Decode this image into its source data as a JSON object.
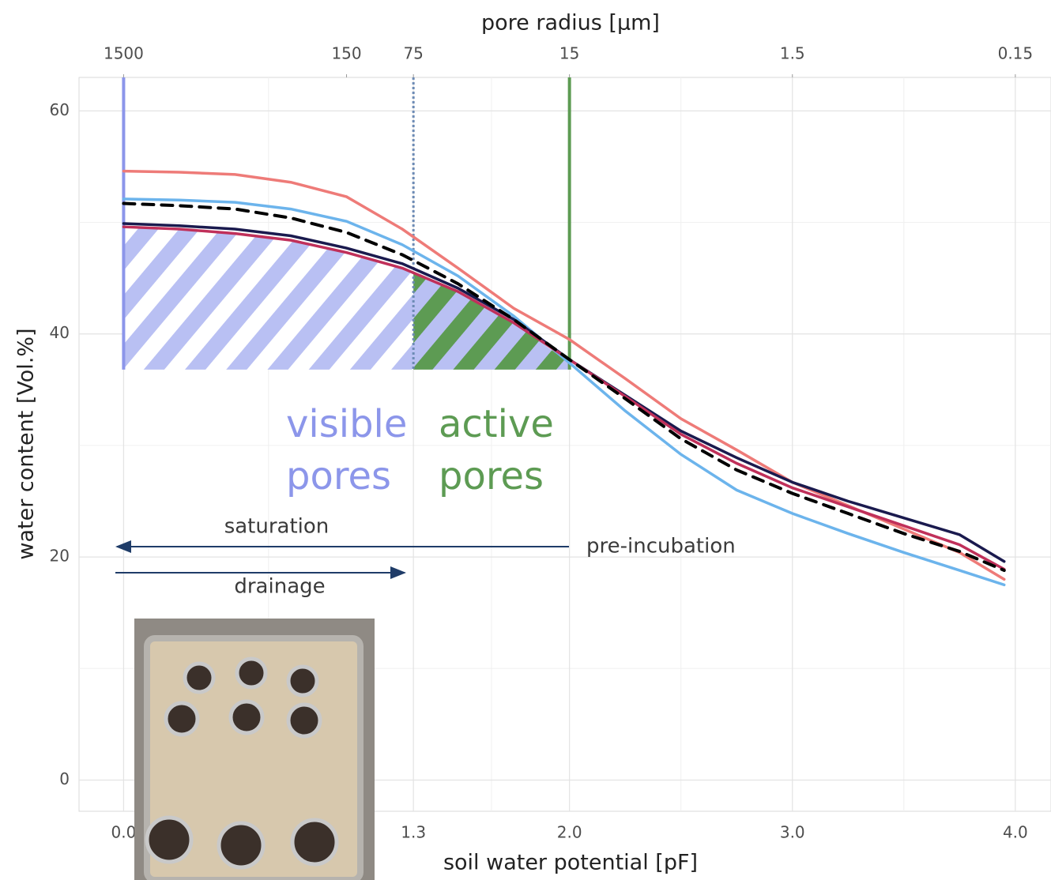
{
  "chart_data": {
    "type": "line",
    "xlabel": "soil water potential [pF]",
    "x2label": "pore radius [μm]",
    "ylabel": "water content [Vol.%]",
    "xlim": [
      -0.2,
      4.16
    ],
    "ylim": [
      -2.8,
      63
    ],
    "xticks": [
      {
        "value": 0,
        "label": "0.0"
      },
      {
        "value": 1.3,
        "label": "1.3"
      },
      {
        "value": 2,
        "label": "2.0"
      },
      {
        "value": 3,
        "label": "3.0"
      },
      {
        "value": 4,
        "label": "4.0"
      }
    ],
    "x2ticks": [
      {
        "value": 0,
        "label": "1500"
      },
      {
        "value": 1,
        "label": "150"
      },
      {
        "value": 1.3,
        "label": "75"
      },
      {
        "value": 2,
        "label": "15"
      },
      {
        "value": 3,
        "label": "1.5"
      },
      {
        "value": 4,
        "label": "0.15"
      }
    ],
    "yticks": [
      0,
      20,
      40,
      60
    ],
    "grid": true,
    "minor_grid": true,
    "x": [
      0,
      0.25,
      0.5,
      0.75,
      1.0,
      1.25,
      1.5,
      1.75,
      2.0,
      2.25,
      2.5,
      2.75,
      3.0,
      3.25,
      3.5,
      3.75,
      3.95
    ],
    "series": [
      {
        "color": "#ee7b78",
        "values": [
          54.6,
          54.5,
          54.3,
          53.6,
          52.3,
          49.4,
          45.9,
          42.3,
          39.5,
          36.0,
          32.4,
          29.6,
          26.7,
          24.6,
          22.5,
          20.4,
          18.0
        ]
      },
      {
        "color": "#6cb4ec",
        "values": [
          52.1,
          52.0,
          51.8,
          51.2,
          50.1,
          48.0,
          45.2,
          41.6,
          37.4,
          33.1,
          29.2,
          26.0,
          23.9,
          22.1,
          20.4,
          18.8,
          17.5
        ]
      },
      {
        "color": "#1a1a4e",
        "values": [
          49.9,
          49.7,
          49.4,
          48.8,
          47.7,
          46.3,
          44.1,
          41.3,
          37.7,
          34.5,
          31.3,
          28.9,
          26.7,
          25.0,
          23.5,
          22.0,
          19.6
        ]
      },
      {
        "color": "#c0305a",
        "values": [
          49.6,
          49.4,
          49.0,
          48.4,
          47.3,
          45.9,
          43.8,
          41.0,
          37.7,
          34.4,
          31.0,
          28.4,
          26.2,
          24.5,
          22.8,
          21.1,
          18.9
        ]
      },
      {
        "color": "#000000",
        "dash": true,
        "values": [
          51.7,
          51.5,
          51.2,
          50.4,
          49.1,
          47.1,
          44.5,
          41.3,
          37.7,
          34.2,
          30.6,
          27.8,
          25.7,
          23.9,
          22.1,
          20.5,
          18.8
        ]
      }
    ],
    "vlines": [
      {
        "x": 0,
        "color": "#8c96ea"
      },
      {
        "x": 1.3,
        "color": "#6d8bb5",
        "dash": true
      },
      {
        "x": 2,
        "color": "#5d9b53"
      }
    ],
    "regions": [
      {
        "label": [
          "visible",
          "pores"
        ],
        "x": [
          0,
          1.3
        ],
        "ybase": 36.8,
        "color": "#8c96ea",
        "fill": "#ffffff"
      },
      {
        "label": [
          "active",
          "pores"
        ],
        "x": [
          1.3,
          2
        ],
        "ybase": 36.8,
        "color": "#5d9b53",
        "fill": "#5d9b53"
      }
    ],
    "annotations": [
      "saturation",
      "pre-incubation",
      "drainage"
    ]
  }
}
